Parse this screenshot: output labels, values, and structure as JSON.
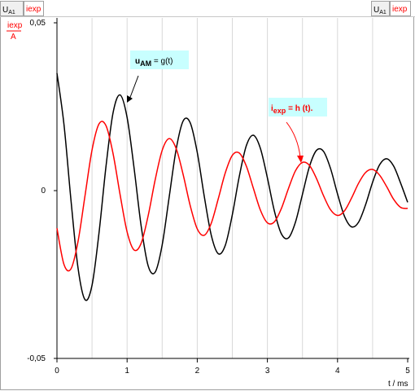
{
  "toolbar": {
    "left": [
      {
        "text": "U",
        "sub": "A1"
      },
      {
        "text": "iexp"
      }
    ],
    "right": [
      {
        "text": "U",
        "sub": "A1"
      },
      {
        "text": "iexp"
      }
    ]
  },
  "chart_data": {
    "type": "line",
    "y_label": {
      "top": "iexp",
      "bottom": "A"
    },
    "x_label": "t / ms",
    "x": [
      0,
      0.1,
      0.2,
      0.3,
      0.4,
      0.5,
      0.6,
      0.7,
      0.8,
      0.9,
      1,
      1.1,
      1.2,
      1.3,
      1.4,
      1.5,
      1.6,
      1.7,
      1.8,
      1.9,
      2,
      2.1,
      2.2,
      2.3,
      2.4,
      2.5,
      2.6,
      2.7,
      2.8,
      2.9,
      3,
      3.1,
      3.2,
      3.3,
      3.4,
      3.5,
      3.6,
      3.7,
      3.8,
      3.9,
      4,
      4.1,
      4.2,
      4.3,
      4.4,
      4.5,
      4.6,
      4.7,
      4.8,
      4.9,
      5
    ],
    "series": [
      {
        "color": "#000000",
        "values": [
          0.035,
          0.0197,
          -0.0029,
          -0.023,
          -0.0325,
          -0.0282,
          -0.0125,
          0.0074,
          0.0232,
          0.0285,
          0.0218,
          0.0066,
          -0.0105,
          -0.0224,
          -0.0243,
          -0.0162,
          -0.0019,
          0.0124,
          0.0208,
          0.0202,
          0.0114,
          -0.0017,
          -0.0133,
          -0.0188,
          -0.0163,
          -0.0072,
          0.0043,
          0.0134,
          0.0165,
          0.0126,
          0.0038,
          -0.0061,
          -0.0129,
          -0.0141,
          -0.0094,
          -0.0011,
          0.0072,
          0.012,
          0.0117,
          0.0066,
          -0.001,
          -0.0077,
          -0.0108,
          -0.0094,
          -0.0042,
          0.0025,
          0.0077,
          0.0095,
          0.0073,
          0.0022,
          -0.0035
        ]
      },
      {
        "color": "#ff0000",
        "values": [
          -0.0112,
          -0.022,
          -0.0233,
          -0.0152,
          -0.0015,
          0.0121,
          0.0199,
          0.0193,
          0.011,
          -0.0012,
          -0.0123,
          -0.0177,
          -0.0157,
          -0.0075,
          0.0032,
          0.012,
          0.0155,
          0.0125,
          0.0047,
          -0.0045,
          -0.0114,
          -0.0133,
          -0.0097,
          -0.0024,
          0.0053,
          0.0105,
          0.0112,
          0.0073,
          0.0007,
          -0.0058,
          -0.0096,
          -0.0093,
          -0.0053,
          0.0006,
          0.0059,
          0.0084,
          0.0075,
          0.0036,
          -0.0015,
          -0.0057,
          -0.0074,
          -0.006,
          -0.0022,
          0.0022,
          0.0054,
          0.0063,
          0.0046,
          0.0012,
          -0.0026,
          -0.005,
          -0.0053
        ]
      }
    ],
    "xlim": [
      0,
      5
    ],
    "xticks": [
      0,
      1,
      2,
      3,
      4,
      5
    ],
    "xgrid": [
      0.5,
      1,
      1.5,
      2,
      2.5,
      3,
      3.5,
      4,
      4.5
    ],
    "ylim": [
      -0.05,
      0.05
    ],
    "yticks": [
      {
        "value": 0.05,
        "label": "0,05"
      },
      0,
      {
        "value": -0.05,
        "label": "-0,05"
      }
    ],
    "annotations": [
      {
        "main": "u",
        "sub": "AM",
        "rest": " = g(t)",
        "color": "#000000"
      },
      {
        "main": "i",
        "sub": "exp",
        "rest": " = h (t).",
        "color": "#ff0000"
      }
    ]
  }
}
